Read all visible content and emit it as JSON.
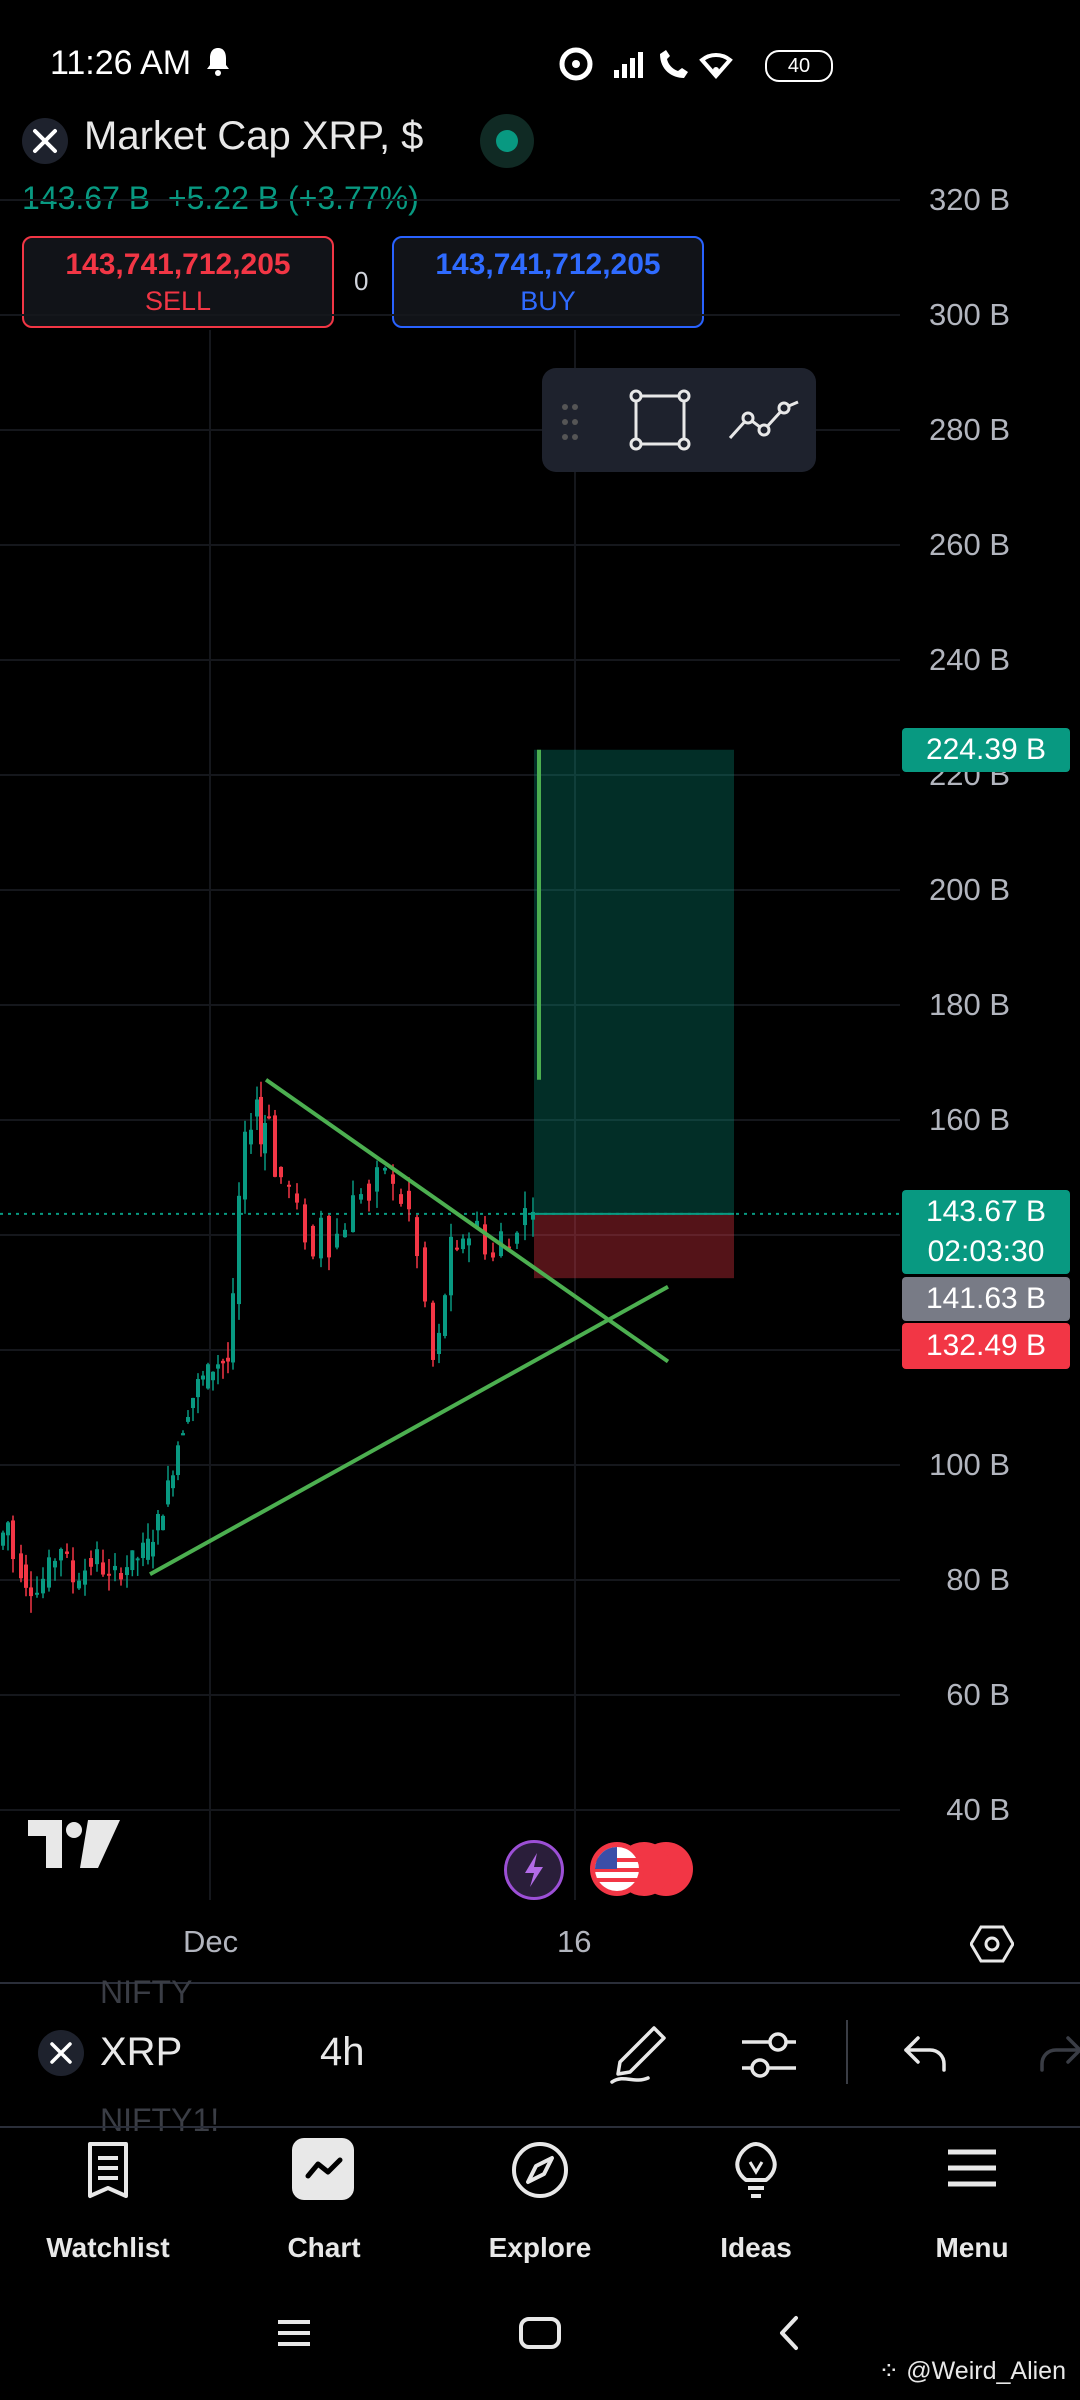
{
  "status_bar": {
    "time": "11:26 AM",
    "battery": "40"
  },
  "symbol": {
    "title": "Market Cap XRP, $",
    "last": "143.67 B",
    "change": "+5.22 B (+3.77%)"
  },
  "trade": {
    "sell_price": "143,741,712,205",
    "sell_label": "SELL",
    "buy_price": "143,741,712,205",
    "buy_label": "BUY",
    "spread": "0"
  },
  "chart_data": {
    "type": "candlestick",
    "title": "Market Cap XRP, $",
    "y_ticks": [
      "320 B",
      "300 B",
      "280 B",
      "260 B",
      "240 B",
      "220 B",
      "200 B",
      "180 B",
      "160 B",
      "100 B",
      "80 B",
      "60 B",
      "40 B"
    ],
    "x_ticks": [
      "Dec",
      "16"
    ],
    "ylim": [
      40,
      320
    ],
    "price_tags": [
      {
        "value": "224.39 B",
        "color": "#089981"
      },
      {
        "value": "143.67 B",
        "sub": "02:03:30",
        "color": "#089981"
      },
      {
        "value": "141.63 B",
        "color": "#787b86"
      },
      {
        "value": "132.49 B",
        "color": "#f23645"
      }
    ],
    "trendlines": [
      {
        "from": [
          "start",
          167
        ],
        "to": [
          "end",
          118
        ],
        "color": "#4caf50"
      },
      {
        "from": [
          "start",
          81
        ],
        "to": [
          "end",
          131
        ],
        "color": "#4caf50"
      }
    ],
    "position": {
      "entry": 143.67,
      "target": 224.39,
      "stop": 132.49
    }
  },
  "bottom_toolbar": {
    "symbol": "XRP",
    "timeframe": "4h",
    "ghost_top": "NIFTY",
    "ghost_bottom": "NIFTY1!"
  },
  "nav": [
    {
      "label": "Watchlist",
      "icon": "watchlist-icon"
    },
    {
      "label": "Chart",
      "icon": "chart-icon"
    },
    {
      "label": "Explore",
      "icon": "compass-icon"
    },
    {
      "label": "Ideas",
      "icon": "lightbulb-icon"
    },
    {
      "label": "Menu",
      "icon": "menu-icon"
    }
  ],
  "watermark": "@Weird_Alien"
}
